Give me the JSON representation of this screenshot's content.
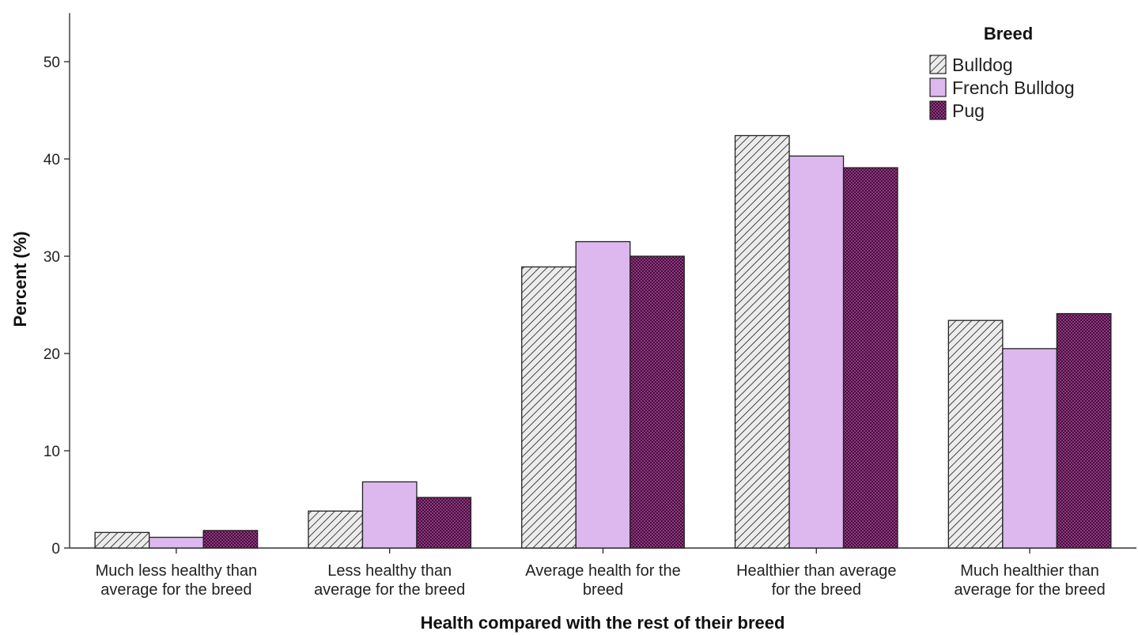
{
  "chart_data": {
    "type": "bar",
    "xlabel": "Health compared with the rest of their breed",
    "ylabel": "Percent (%)",
    "ylim": [
      0,
      55
    ],
    "yticks": [
      0,
      10,
      20,
      30,
      40,
      50
    ],
    "grid": false,
    "legend": {
      "title": "Breed",
      "position": "top-right"
    },
    "categories": [
      [
        "Much less healthy than",
        "average for the breed"
      ],
      [
        "Less healthy than",
        "average for the breed"
      ],
      [
        "Average health for the",
        "breed"
      ],
      [
        "Healthier than average",
        "for the breed"
      ],
      [
        "Much healthier than",
        "average for the breed"
      ]
    ],
    "series": [
      {
        "name": "Bulldog",
        "fill": "hatch",
        "color": "#d9d9d9",
        "values": [
          1.6,
          3.8,
          28.9,
          42.4,
          23.4
        ]
      },
      {
        "name": "French Bulldog",
        "fill": "solid",
        "color": "#dcb8ee",
        "values": [
          1.1,
          6.8,
          31.5,
          40.3,
          20.5
        ]
      },
      {
        "name": "Pug",
        "fill": "checker",
        "color": "#5a0f4e",
        "values": [
          1.8,
          5.2,
          30.0,
          39.1,
          24.1
        ]
      }
    ]
  }
}
